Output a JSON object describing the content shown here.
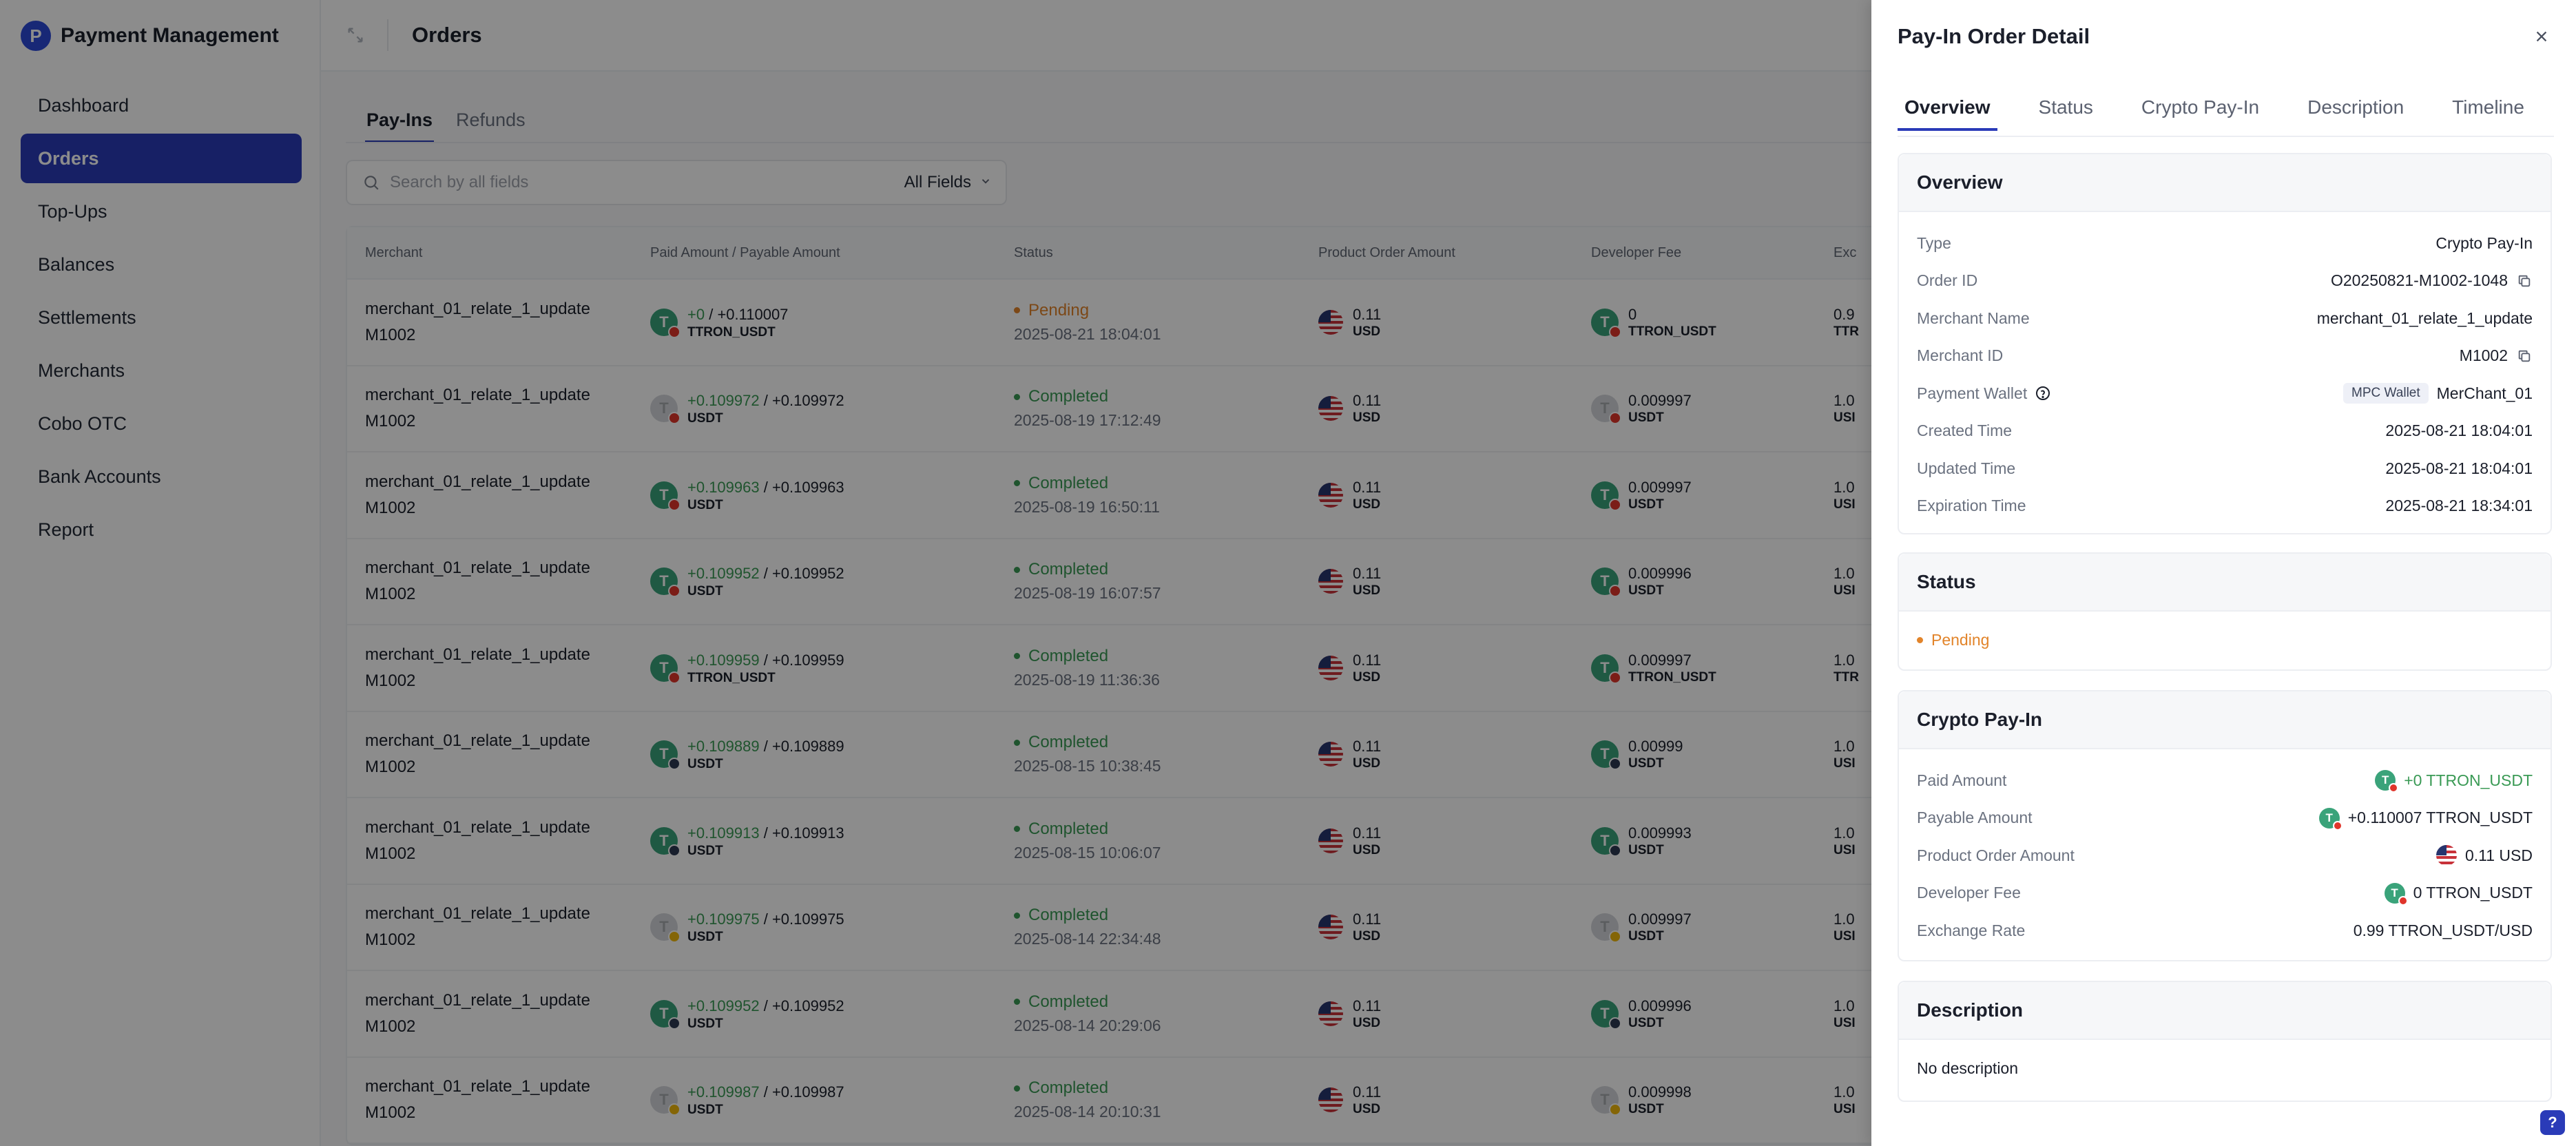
{
  "app": {
    "title": "Payment Management",
    "logo_letter": "P"
  },
  "sidebar": {
    "items": [
      {
        "label": "Dashboard"
      },
      {
        "label": "Orders"
      },
      {
        "label": "Top-Ups"
      },
      {
        "label": "Balances"
      },
      {
        "label": "Settlements"
      },
      {
        "label": "Merchants"
      },
      {
        "label": "Cobo OTC"
      },
      {
        "label": "Bank Accounts"
      },
      {
        "label": "Report"
      }
    ],
    "active": "Orders"
  },
  "header": {
    "page_title": "Orders"
  },
  "tabs": [
    {
      "label": "Pay-Ins"
    },
    {
      "label": "Refunds"
    }
  ],
  "search": {
    "placeholder": "Search by all fields",
    "field_select": "All Fields"
  },
  "table": {
    "columns": [
      "Merchant",
      "Paid Amount / Payable Amount",
      "Status",
      "Product Order Amount",
      "Developer Fee",
      "Exc"
    ],
    "rows": [
      {
        "merchant": "merchant_01_relate_1_update",
        "merchant_id": "M1002",
        "paid": "+0",
        "payable": "+0.110007",
        "unit": "TTRON_USDT",
        "status": "Pending",
        "time": "2025-08-21 18:04:01",
        "poa": "0.11",
        "poa_unit": "USD",
        "fee": "0",
        "fee_unit": "TTRON_USDT",
        "exc1": "0.9",
        "exc2": "TTR"
      },
      {
        "merchant": "merchant_01_relate_1_update",
        "merchant_id": "M1002",
        "paid": "+0.109972",
        "payable": "+0.109972",
        "unit": "USDT",
        "status": "Completed",
        "time": "2025-08-19 17:12:49",
        "poa": "0.11",
        "poa_unit": "USD",
        "fee": "0.009997",
        "fee_unit": "USDT",
        "exc1": "1.0",
        "exc2": "USI"
      },
      {
        "merchant": "merchant_01_relate_1_update",
        "merchant_id": "M1002",
        "paid": "+0.109963",
        "payable": "+0.109963",
        "unit": "USDT",
        "status": "Completed",
        "time": "2025-08-19 16:50:11",
        "poa": "0.11",
        "poa_unit": "USD",
        "fee": "0.009997",
        "fee_unit": "USDT",
        "exc1": "1.0",
        "exc2": "USI"
      },
      {
        "merchant": "merchant_01_relate_1_update",
        "merchant_id": "M1002",
        "paid": "+0.109952",
        "payable": "+0.109952",
        "unit": "USDT",
        "status": "Completed",
        "time": "2025-08-19 16:07:57",
        "poa": "0.11",
        "poa_unit": "USD",
        "fee": "0.009996",
        "fee_unit": "USDT",
        "exc1": "1.0",
        "exc2": "USI"
      },
      {
        "merchant": "merchant_01_relate_1_update",
        "merchant_id": "M1002",
        "paid": "+0.109959",
        "payable": "+0.109959",
        "unit": "TTRON_USDT",
        "status": "Completed",
        "time": "2025-08-19 11:36:36",
        "poa": "0.11",
        "poa_unit": "USD",
        "fee": "0.009997",
        "fee_unit": "TTRON_USDT",
        "exc1": "1.0",
        "exc2": "TTR"
      },
      {
        "merchant": "merchant_01_relate_1_update",
        "merchant_id": "M1002",
        "paid": "+0.109889",
        "payable": "+0.109889",
        "unit": "USDT",
        "status": "Completed",
        "time": "2025-08-15 10:38:45",
        "poa": "0.11",
        "poa_unit": "USD",
        "fee": "0.00999",
        "fee_unit": "USDT",
        "exc1": "1.0",
        "exc2": "USI"
      },
      {
        "merchant": "merchant_01_relate_1_update",
        "merchant_id": "M1002",
        "paid": "+0.109913",
        "payable": "+0.109913",
        "unit": "USDT",
        "status": "Completed",
        "time": "2025-08-15 10:06:07",
        "poa": "0.11",
        "poa_unit": "USD",
        "fee": "0.009993",
        "fee_unit": "USDT",
        "exc1": "1.0",
        "exc2": "USI"
      },
      {
        "merchant": "merchant_01_relate_1_update",
        "merchant_id": "M1002",
        "paid": "+0.109975",
        "payable": "+0.109975",
        "unit": "USDT",
        "status": "Completed",
        "time": "2025-08-14 22:34:48",
        "poa": "0.11",
        "poa_unit": "USD",
        "fee": "0.009997",
        "fee_unit": "USDT",
        "exc1": "1.0",
        "exc2": "USI"
      },
      {
        "merchant": "merchant_01_relate_1_update",
        "merchant_id": "M1002",
        "paid": "+0.109952",
        "payable": "+0.109952",
        "unit": "USDT",
        "status": "Completed",
        "time": "2025-08-14 20:29:06",
        "poa": "0.11",
        "poa_unit": "USD",
        "fee": "0.009996",
        "fee_unit": "USDT",
        "exc1": "1.0",
        "exc2": "USI"
      },
      {
        "merchant": "merchant_01_relate_1_update",
        "merchant_id": "M1002",
        "paid": "+0.109987",
        "payable": "+0.109987",
        "unit": "USDT",
        "status": "Completed",
        "time": "2025-08-14 20:10:31",
        "poa": "0.11",
        "poa_unit": "USD",
        "fee": "0.009998",
        "fee_unit": "USDT",
        "exc1": "1.0",
        "exc2": "USI"
      }
    ]
  },
  "drawer": {
    "title": "Pay-In Order Detail",
    "tabs": [
      {
        "label": "Overview"
      },
      {
        "label": "Status"
      },
      {
        "label": "Crypto Pay-In"
      },
      {
        "label": "Description"
      },
      {
        "label": "Timeline"
      }
    ],
    "overview": {
      "heading": "Overview",
      "type_k": "Type",
      "type_v": "Crypto Pay-In",
      "order_id_k": "Order ID",
      "order_id_v": "O20250821-M1002-1048",
      "merchant_name_k": "Merchant Name",
      "merchant_name_v": "merchant_01_relate_1_update",
      "merchant_id_k": "Merchant ID",
      "merchant_id_v": "M1002",
      "wallet_k": "Payment Wallet",
      "wallet_tag": "MPC Wallet",
      "wallet_v": "MerChant_01",
      "created_k": "Created Time",
      "created_v": "2025-08-21 18:04:01",
      "updated_k": "Updated Time",
      "updated_v": "2025-08-21 18:04:01",
      "expiration_k": "Expiration Time",
      "expiration_v": "2025-08-21 18:34:01"
    },
    "status": {
      "heading": "Status",
      "value": "Pending"
    },
    "crypto": {
      "heading": "Crypto Pay-In",
      "paid_k": "Paid Amount",
      "paid_v": "+0 TTRON_USDT",
      "payable_k": "Payable Amount",
      "payable_v": "+0.110007 TTRON_USDT",
      "poa_k": "Product Order Amount",
      "poa_v": "0.11 USD",
      "fee_k": "Developer Fee",
      "fee_v": "0 TTRON_USDT",
      "rate_k": "Exchange Rate",
      "rate_v": "0.99 TTRON_USDT/USD"
    },
    "description": {
      "heading": "Description",
      "value": "No description"
    }
  },
  "colors": {
    "accent": "#2a3bb8",
    "pending": "#e2842a",
    "completed": "#3a9a55",
    "usdt": "#3aa37a"
  },
  "help_widget": "?"
}
